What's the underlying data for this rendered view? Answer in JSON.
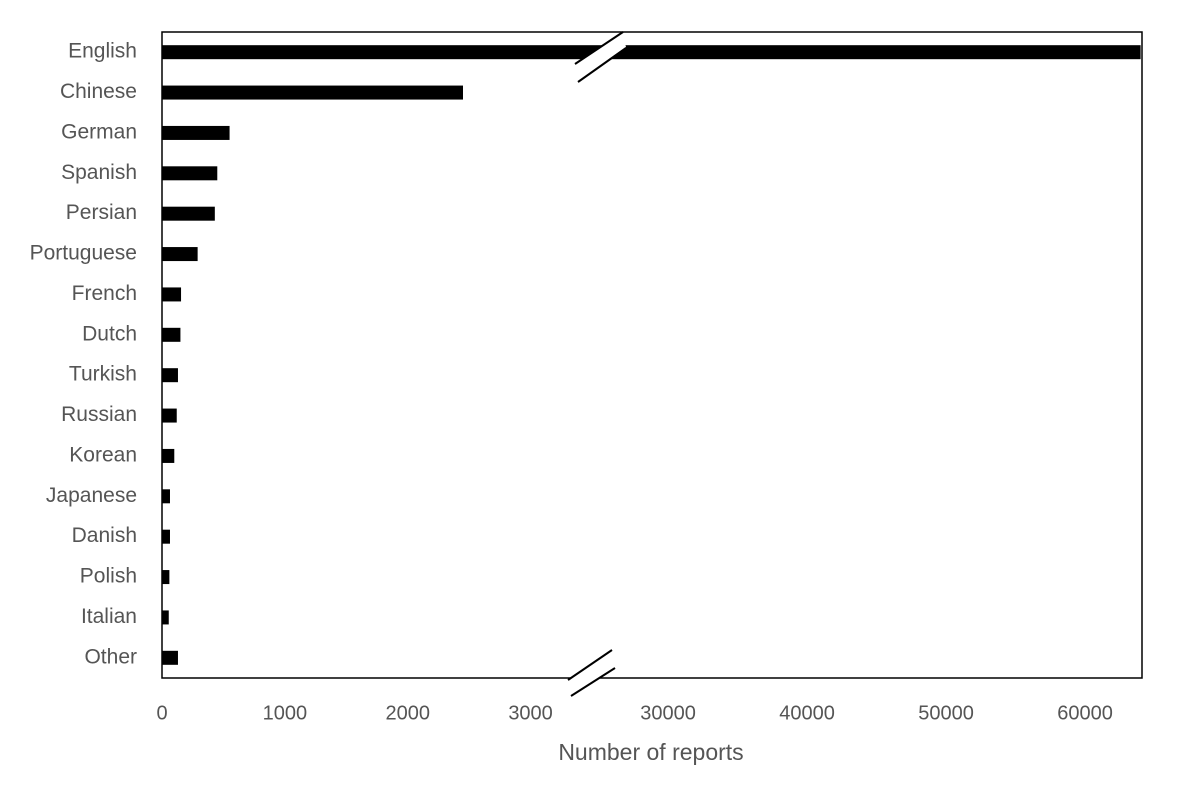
{
  "chart_data": {
    "type": "bar",
    "orientation": "horizontal",
    "x_label": "Number of reports",
    "categories": [
      "English",
      "Chinese",
      "German",
      "Spanish",
      "Persian",
      "Portuguese",
      "French",
      "Dutch",
      "Turkish",
      "Russian",
      "Korean",
      "Japanese",
      "Danish",
      "Polish",
      "Italian",
      "Other"
    ],
    "values": [
      64000,
      2450,
      550,
      450,
      430,
      290,
      155,
      150,
      130,
      120,
      100,
      65,
      65,
      60,
      55,
      130
    ],
    "color": "#000000",
    "xlim": [
      0,
      64100
    ],
    "axis_break": [
      3500,
      25100
    ],
    "xticks": [
      0,
      1000,
      2000,
      3000,
      30000,
      40000,
      50000,
      60000
    ],
    "grid": false
  }
}
